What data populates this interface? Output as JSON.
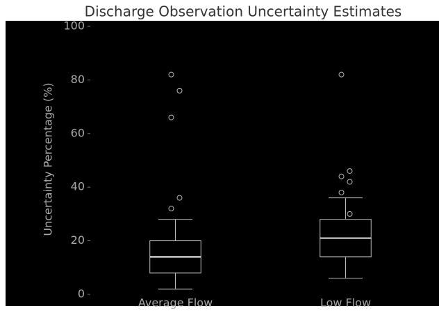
{
  "chart_data": {
    "type": "box",
    "title": "Discharge Observation Uncertainty Estimates",
    "y_label": "Uncertainty Percentage (%)",
    "categories": [
      "Average Flow",
      "Low Flow"
    ],
    "whisker_low": [
      2,
      6
    ],
    "q1": [
      8,
      14
    ],
    "median": [
      14,
      21
    ],
    "q3": [
      20,
      28
    ],
    "whisker_high": [
      28,
      36
    ],
    "outliers": [
      [
        82,
        76,
        66,
        36,
        32
      ],
      [
        82,
        46,
        44,
        42,
        38,
        30
      ]
    ],
    "color": "#bbbbbb",
    "ylim": [
      0,
      100
    ],
    "yticks": [
      0,
      20,
      40,
      60,
      80,
      100
    ]
  }
}
